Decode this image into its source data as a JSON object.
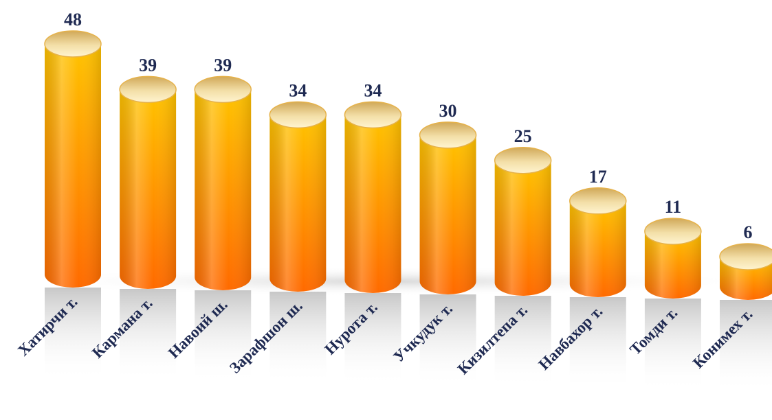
{
  "chart_data": {
    "type": "bar",
    "style": "3d-cylinder",
    "categories": [
      "Хатирчи т.",
      "Кармана т.",
      "Навоий ш.",
      "Зарафшон ш.",
      "Нурота т.",
      "Учкудук т.",
      "Кизилтепа т.",
      "Навбахор т.",
      "Томди т.",
      "Конимех т."
    ],
    "values": [
      48,
      39,
      39,
      34,
      34,
      30,
      25,
      17,
      11,
      6
    ],
    "data_labels": [
      "48",
      "39",
      "39",
      "34",
      "34",
      "30",
      "25",
      "17",
      "11",
      "6"
    ],
    "title": "",
    "xlabel": "",
    "ylabel": "",
    "ylim": [
      0,
      48
    ],
    "grid": false,
    "legend": "none",
    "colors": {
      "bar_top": "#ffc400",
      "bar_bottom": "#ff6a00",
      "cap_light": "#fff4d0",
      "cap_dark": "#d0a858",
      "label": "#1f2a52"
    }
  }
}
